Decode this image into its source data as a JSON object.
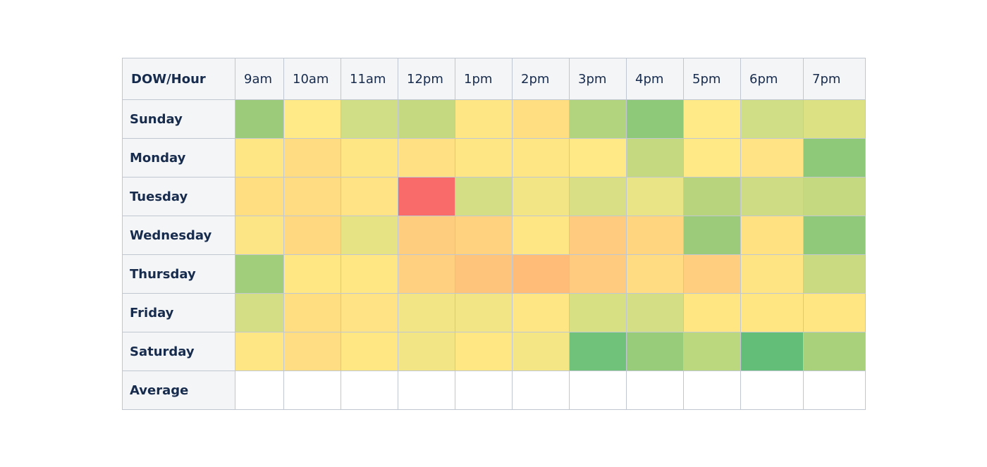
{
  "chart_data": {
    "type": "heatmap",
    "corner_label": "DOW/Hour",
    "columns": [
      "9am",
      "10am",
      "11am",
      "12pm",
      "1pm",
      "2pm",
      "3pm",
      "4pm",
      "5pm",
      "6pm",
      "7pm"
    ],
    "rows": [
      {
        "label": "Sunday",
        "colors": [
          "#9ccc7a",
          "#ffea87",
          "#d0de85",
          "#c4d980",
          "#ffe684",
          "#ffde82",
          "#b3d47e",
          "#8ec97a",
          "#ffea87",
          "#d0de85",
          "#dce183"
        ]
      },
      {
        "label": "Monday",
        "colors": [
          "#ffe684",
          "#ffdb82",
          "#ffe684",
          "#ffe184",
          "#ffe684",
          "#ffe684",
          "#ffe986",
          "#c4d980",
          "#ffe986",
          "#ffe384",
          "#8ec97a"
        ]
      },
      {
        "label": "Tuesday",
        "colors": [
          "#ffde82",
          "#ffdc82",
          "#ffe384",
          "#f96a6a",
          "#d4df85",
          "#f2e585",
          "#d8df84",
          "#e9e485",
          "#b8d57e",
          "#cedd84",
          "#c4d980"
        ]
      },
      {
        "label": "Wednesday",
        "colors": [
          "#fce584",
          "#ffd880",
          "#e6e385",
          "#ffcd7e",
          "#ffd27f",
          "#ffe684",
          "#ffcb7e",
          "#ffd580",
          "#9ccc7a",
          "#ffe182",
          "#91c97a"
        ]
      },
      {
        "label": "Thursday",
        "colors": [
          "#a0ce7b",
          "#ffe784",
          "#ffe784",
          "#ffd07f",
          "#ffc47b",
          "#ffbb78",
          "#ffcb7e",
          "#ffdc82",
          "#ffce7e",
          "#ffe483",
          "#c9da81"
        ]
      },
      {
        "label": "Friday",
        "colors": [
          "#d4df85",
          "#ffde82",
          "#ffe384",
          "#f2e585",
          "#f2e585",
          "#ffe684",
          "#d8e084",
          "#d4df85",
          "#ffe683",
          "#ffe683",
          "#ffe683"
        ]
      },
      {
        "label": "Saturday",
        "colors": [
          "#ffe684",
          "#ffdd82",
          "#ffe784",
          "#f2e585",
          "#ffe784",
          "#f4e585",
          "#70c27a",
          "#98cc7a",
          "#bcd87e",
          "#63bf78",
          "#a9d17c"
        ]
      }
    ],
    "summary_row": {
      "label": "Average"
    }
  }
}
